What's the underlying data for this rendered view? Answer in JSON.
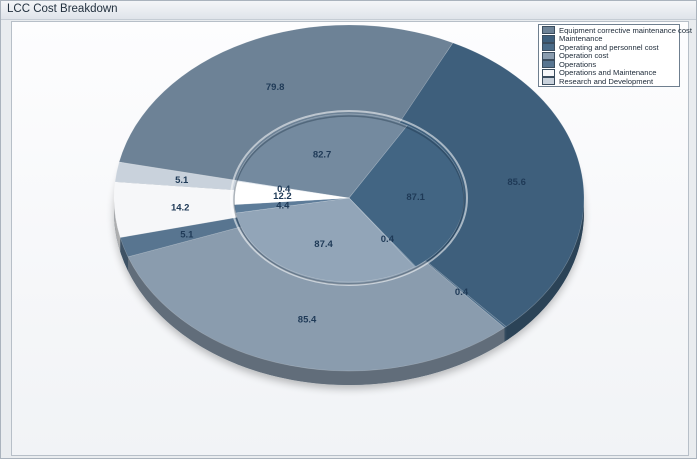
{
  "window": {
    "title": "LCC Cost Breakdown"
  },
  "chart_data": {
    "type": "pie",
    "style": "3d-doughnut",
    "title": "LCC Cost Breakdown",
    "categories": [
      "Equipment corrective maintenance cost",
      "Maintenance",
      "Operating and personnel cost",
      "Operation cost",
      "Operations",
      "Operations and Maintenance",
      "Research and Development"
    ],
    "colors": [
      "#6d8296",
      "#3e5f7c",
      "#4a6b88",
      "#8a9cae",
      "#587590",
      "#f6f7f9",
      "#c9d2dc"
    ],
    "series": [
      {
        "values": [
          79.8,
          85.6,
          0.4,
          85.4,
          5.1,
          14.2,
          5.1
        ]
      },
      {
        "values": [
          82.7,
          87.1,
          0.4,
          87.4,
          4.4,
          12.2,
          0.4
        ]
      }
    ],
    "legend_position": "top-right"
  }
}
